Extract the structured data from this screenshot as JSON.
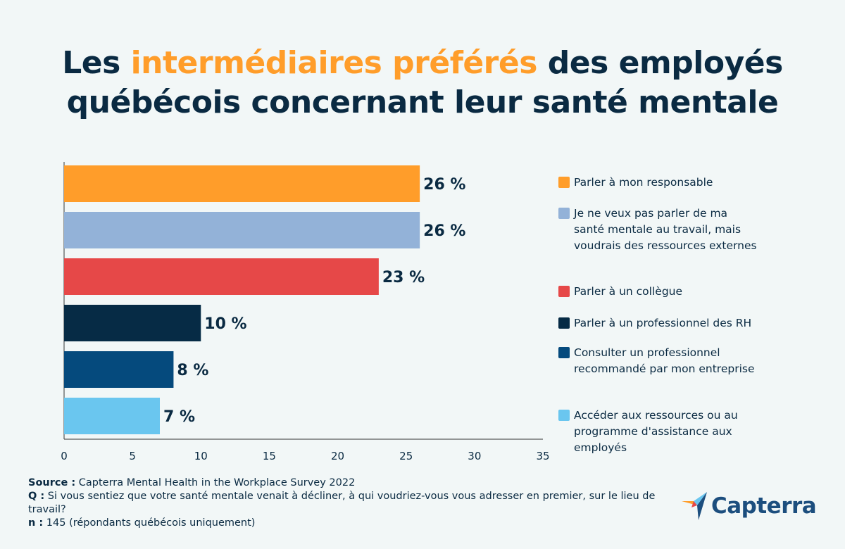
{
  "title": {
    "part1": "Les ",
    "highlight": "intermédiaires préférés",
    "part2": " des employés",
    "line2": "québécois concernant leur santé mentale"
  },
  "colors": {
    "title": "#0a2a42",
    "highlight": "#ff9d2a"
  },
  "chart_data": {
    "type": "bar",
    "orientation": "horizontal",
    "categories": [
      "Parler à mon responsable",
      "Je ne veux pas parler de ma santé mentale au travail, mais voudrais des ressources externes",
      "Parler à un collègue",
      "Parler à un professionnel des RH",
      "Consulter un professionnel recommandé par mon entreprise",
      "Accéder aux ressources ou au programme d'assistance aux employés"
    ],
    "values": [
      26,
      26,
      23,
      10,
      8,
      7
    ],
    "value_labels": [
      "26 %",
      "26 %",
      "23 %",
      "10 %",
      "8 %",
      "7 %"
    ],
    "bar_colors": [
      "#ff9d2a",
      "#93b2d8",
      "#e64848",
      "#062b45",
      "#054a7d",
      "#6ac6ef"
    ],
    "xlim": [
      0,
      35
    ],
    "xticks": [
      0,
      5,
      10,
      15,
      20,
      25,
      30,
      35
    ],
    "legend_position": "right",
    "grid": false
  },
  "footer": {
    "source_label": "Source :",
    "source_text": " Capterra Mental Health in the Workplace Survey 2022",
    "q_label": "Q :",
    "q_text": " Si vous sentiez que votre santé mentale venait à décliner, à qui voudriez-vous vous adresser en premier, sur le lieu de travail?",
    "n_label": "n :",
    "n_text": " 145 (répondants québécois uniquement)"
  },
  "logo": {
    "text": "Capterra"
  }
}
